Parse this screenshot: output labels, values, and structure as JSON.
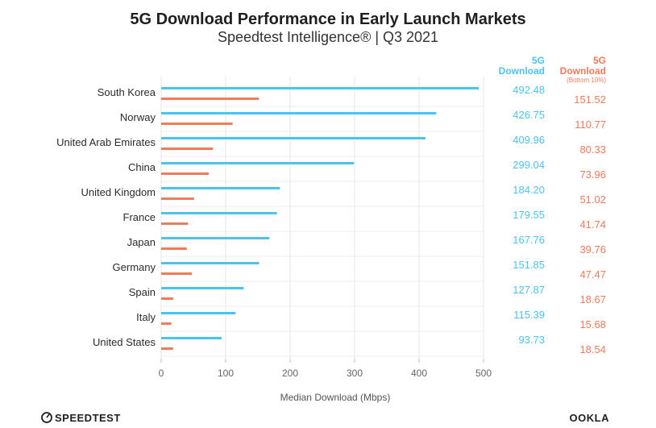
{
  "chart_data": {
    "type": "bar",
    "orientation": "horizontal",
    "title": "5G Download Performance in Early Launch Markets",
    "subtitle": "Speedtest Intelligence® | Q3 2021",
    "xlabel": "Median Download (Mbps)",
    "xlim": [
      0,
      500
    ],
    "xticks": [
      0,
      100,
      200,
      300,
      400,
      500
    ],
    "categories": [
      "South Korea",
      "Norway",
      "United Arab Emirates",
      "China",
      "United Kingdom",
      "France",
      "Japan",
      "Germany",
      "Spain",
      "Italy",
      "United States"
    ],
    "series": [
      {
        "name": "5G Download",
        "header": [
          "5G",
          "Download"
        ],
        "color": "#4cc3ef",
        "values": [
          492.48,
          426.75,
          409.96,
          299.04,
          184.2,
          179.55,
          167.76,
          151.85,
          127.87,
          115.39,
          93.73
        ],
        "labels": [
          "492.48",
          "426.75",
          "409.96",
          "299.04",
          "184.20",
          "179.55",
          "167.76",
          "151.85",
          "127.87",
          "115.39",
          "93.73"
        ]
      },
      {
        "name": "5G Download (Bottom 10%)",
        "header": [
          "5G",
          "Download"
        ],
        "header_note": "(Bottom 10%)",
        "color": "#f07a5a",
        "values": [
          151.52,
          110.77,
          80.33,
          73.96,
          51.02,
          41.74,
          39.76,
          47.47,
          18.67,
          15.68,
          18.54
        ],
        "labels": [
          "151.52",
          "110.77",
          "80.33",
          "73.96",
          "51.02",
          "41.74",
          "39.76",
          "47.47",
          "18.67",
          "15.68",
          "18.54"
        ]
      }
    ],
    "grid": true
  },
  "branding": {
    "left_logo": "SPEEDTEST",
    "right_logo": "OOKLA"
  }
}
